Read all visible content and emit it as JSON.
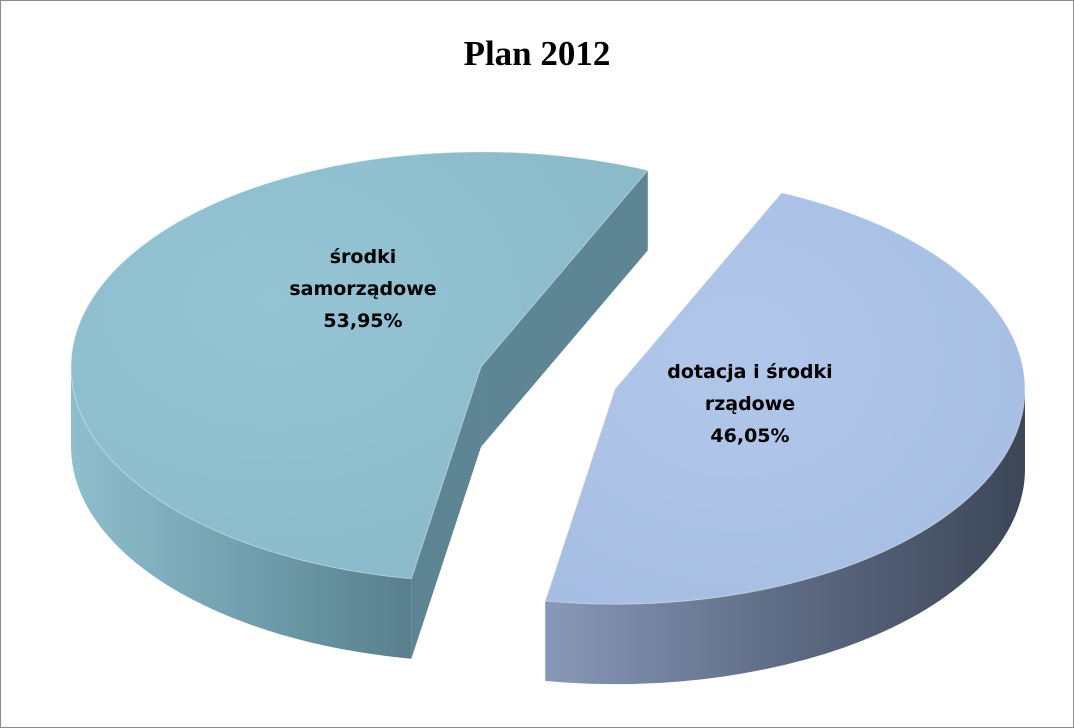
{
  "chart_data": {
    "type": "pie",
    "style": "3d-exploded",
    "title": "Plan 2012",
    "slices": [
      {
        "label_lines": [
          "środki",
          "samorządowe"
        ],
        "value_label": "53,95%",
        "value": 53.95,
        "color": "#92c2d2"
      },
      {
        "label_lines": [
          "dotacja i środki",
          "rządowe"
        ],
        "value_label": "46,05%",
        "value": 46.05,
        "color": "#aec4e8"
      }
    ],
    "legend": "none"
  }
}
